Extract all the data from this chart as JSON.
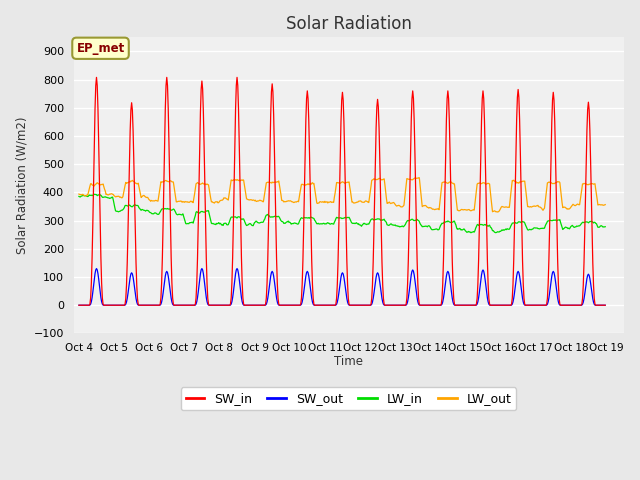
{
  "title": "Solar Radiation",
  "ylabel": "Solar Radiation (W/m2)",
  "xlabel": "Time",
  "ylim": [
    -100,
    950
  ],
  "yticks": [
    -100,
    0,
    100,
    200,
    300,
    400,
    500,
    600,
    700,
    800,
    900
  ],
  "fig_bg_color": "#e8e8e8",
  "plot_bg_color": "#e8e8e8",
  "inner_plot_bg": "#f0f0f0",
  "grid_color": "#ffffff",
  "SW_in_color": "#ff0000",
  "SW_out_color": "#0000ff",
  "LW_in_color": "#00dd00",
  "LW_out_color": "#ffa500",
  "annotation_text": "EP_met",
  "annotation_bg": "#ffffcc",
  "annotation_border": "#999933",
  "n_days": 15,
  "steps_per_day": 48,
  "SW_in_peaks": [
    808,
    718,
    808,
    795,
    808,
    785,
    760,
    755,
    730,
    760,
    760,
    760,
    765,
    755,
    720
  ],
  "SW_out_peaks": [
    130,
    115,
    120,
    130,
    130,
    120,
    120,
    115,
    115,
    125,
    120,
    125,
    120,
    120,
    110
  ],
  "LW_in_day_vals": [
    390,
    355,
    340,
    330,
    310,
    315,
    310,
    310,
    305,
    300,
    295,
    285,
    295,
    300,
    295
  ],
  "LW_in_night_vals": [
    385,
    335,
    325,
    290,
    285,
    295,
    290,
    290,
    285,
    280,
    270,
    260,
    270,
    270,
    280
  ],
  "LW_out_day_vals": [
    430,
    435,
    440,
    430,
    445,
    435,
    430,
    435,
    445,
    450,
    435,
    430,
    440,
    435,
    430
  ],
  "LW_out_night_vals": [
    390,
    385,
    370,
    365,
    375,
    370,
    365,
    365,
    365,
    350,
    340,
    335,
    350,
    345,
    355
  ],
  "xtick_labels": [
    "Oct 4",
    "Oct 5",
    "Oct 6",
    "Oct 7",
    "Oct 8",
    "Oct 9",
    "Oct 10",
    "Oct 11",
    "Oct 12",
    "Oct 13",
    "Oct 14",
    "Oct 15",
    "Oct 16",
    "Oct 17",
    "Oct 18",
    "Oct 19"
  ],
  "legend_labels": [
    "SW_in",
    "SW_out",
    "LW_in",
    "LW_out"
  ],
  "legend_colors": [
    "#ff0000",
    "#0000ff",
    "#00dd00",
    "#ffa500"
  ]
}
